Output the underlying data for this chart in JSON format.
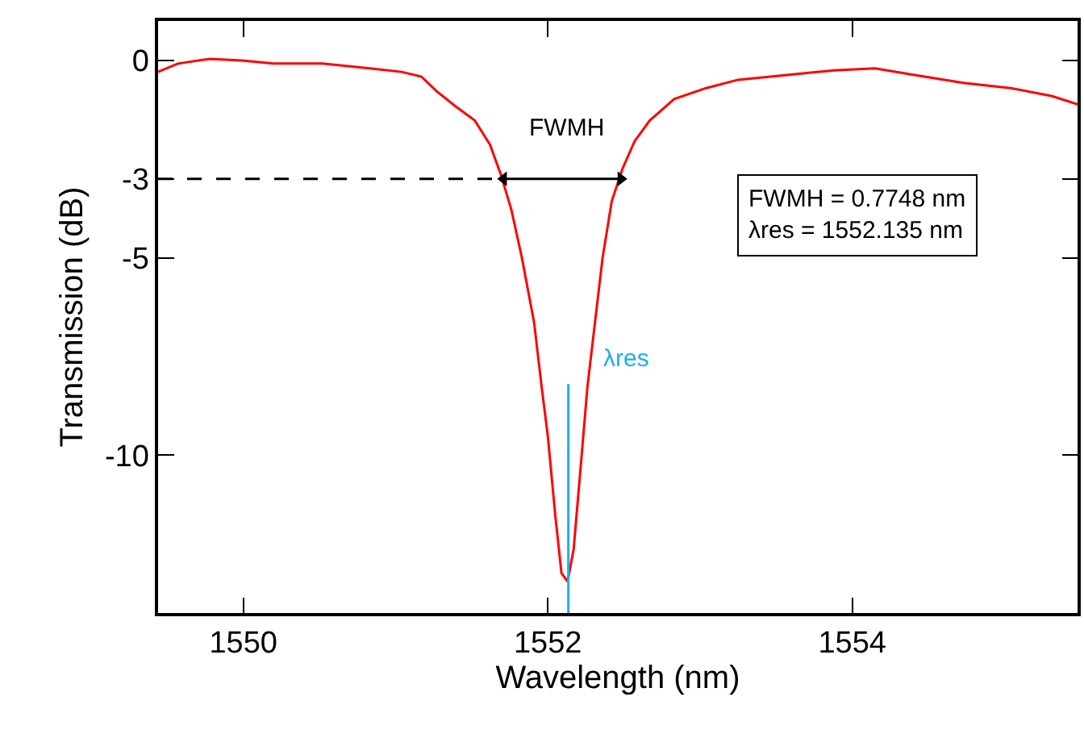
{
  "chart_data": {
    "type": "line",
    "xlabel": "Wavelength (nm)",
    "ylabel": "Transmission (dB)",
    "xlim": [
      1549.44,
      1555.48
    ],
    "xticks": [
      1550,
      1552,
      1554
    ],
    "ylim": [
      -14,
      1
    ],
    "yticks": [
      0,
      -3,
      -5,
      -10
    ],
    "series": [
      {
        "color": "#ff0000",
        "x": [
          1549.44,
          1549.57,
          1549.78,
          1549.99,
          1550.2,
          1550.52,
          1550.83,
          1551.04,
          1551.17,
          1551.27,
          1551.39,
          1551.52,
          1551.62,
          1551.69,
          1551.76,
          1551.83,
          1551.91,
          1551.96,
          1552.0,
          1552.05,
          1552.09,
          1552.13,
          1552.17,
          1552.22,
          1552.26,
          1552.31,
          1552.36,
          1552.42,
          1552.49,
          1552.57,
          1552.67,
          1552.83,
          1553.04,
          1553.25,
          1553.57,
          1553.88,
          1554.15,
          1554.41,
          1554.73,
          1555.04,
          1555.31,
          1555.48
        ],
        "values": [
          -0.29,
          -0.08,
          0.04,
          0,
          -0.08,
          -0.08,
          -0.2,
          -0.29,
          -0.41,
          -0.78,
          -1.15,
          -1.52,
          -2.13,
          -2.87,
          -3.77,
          -5.0,
          -6.64,
          -8.28,
          -9.51,
          -11.56,
          -12.99,
          -13.2,
          -12.38,
          -10.12,
          -8.28,
          -6.64,
          -5.0,
          -3.57,
          -2.75,
          -2.05,
          -1.52,
          -0.98,
          -0.7,
          -0.49,
          -0.37,
          -0.25,
          -0.2,
          -0.37,
          -0.57,
          -0.7,
          -0.9,
          -1.11
        ]
      },
      {
        "color": "#000000",
        "line_style": "dashed",
        "x": [
          1549.44,
          1551.71
        ],
        "values": [
          -3,
          -3
        ]
      },
      {
        "color": "#000000",
        "marker": "triangle",
        "x": [
          1551.71,
          1552.48
        ],
        "values": [
          -3,
          -3
        ]
      },
      {
        "color": "#1ab0ef",
        "x": [
          1552.135,
          1552.135
        ],
        "values": [
          -8.2,
          -14
        ]
      }
    ],
    "annotations": [
      "FWMH",
      "λres",
      "FWMH = 0.7748 nm\nλres = 1552.135 nm"
    ]
  }
}
